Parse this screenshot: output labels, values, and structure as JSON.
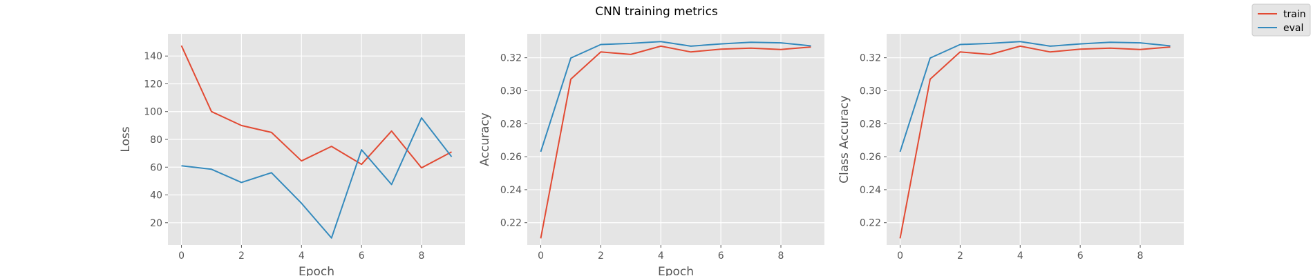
{
  "figure": {
    "suptitle": "CNN training metrics",
    "legend_position": "top-right",
    "legend": [
      {
        "label": "train",
        "color": "#E24A33"
      },
      {
        "label": "eval",
        "color": "#348ABD"
      }
    ],
    "background": "#E5E5E5"
  },
  "chart_data": [
    {
      "type": "line",
      "title": "",
      "xlabel": "Epoch",
      "ylabel": "Loss",
      "xlim": [
        -0.45,
        9.45
      ],
      "ylim": [
        4,
        156
      ],
      "xticks": [
        0,
        2,
        4,
        6,
        8
      ],
      "yticks": [
        20,
        40,
        60,
        80,
        100,
        120,
        140
      ],
      "grid": true,
      "x": [
        0,
        1,
        2,
        3,
        4,
        5,
        6,
        7,
        8,
        9
      ],
      "series": [
        {
          "name": "train",
          "color": "#E24A33",
          "values": [
            147.5,
            100,
            90,
            85,
            64.5,
            75,
            62,
            86,
            59.5,
            71
          ]
        },
        {
          "name": "eval",
          "color": "#348ABD",
          "values": [
            61,
            58.5,
            49,
            56,
            34,
            9,
            72.5,
            47.5,
            95.5,
            67.5
          ]
        }
      ]
    },
    {
      "type": "line",
      "title": "",
      "xlabel": "Epoch",
      "ylabel": "Accuracy",
      "xlim": [
        -0.45,
        9.45
      ],
      "ylim": [
        0.2065,
        0.3345
      ],
      "xticks": [
        0,
        2,
        4,
        6,
        8
      ],
      "yticks": [
        0.22,
        0.24,
        0.26,
        0.28,
        0.3,
        0.32
      ],
      "ytick_decimals": 2,
      "grid": true,
      "x": [
        0,
        1,
        2,
        3,
        4,
        5,
        6,
        7,
        8,
        9
      ],
      "series": [
        {
          "name": "train",
          "color": "#E24A33",
          "values": [
            0.2105,
            0.307,
            0.3235,
            0.322,
            0.327,
            0.3235,
            0.3252,
            0.3258,
            0.325,
            0.3265
          ]
        },
        {
          "name": "eval",
          "color": "#348ABD",
          "values": [
            0.263,
            0.3198,
            0.328,
            0.3287,
            0.3298,
            0.327,
            0.3284,
            0.3294,
            0.329,
            0.3272
          ]
        }
      ]
    },
    {
      "type": "line",
      "title": "",
      "xlabel": "",
      "ylabel": "Class Accuracy",
      "xlim": [
        -0.45,
        9.45
      ],
      "ylim": [
        0.2065,
        0.3345
      ],
      "xticks": [
        0,
        2,
        4,
        6,
        8
      ],
      "yticks": [
        0.22,
        0.24,
        0.26,
        0.28,
        0.3,
        0.32
      ],
      "ytick_decimals": 2,
      "grid": true,
      "x": [
        0,
        1,
        2,
        3,
        4,
        5,
        6,
        7,
        8,
        9
      ],
      "series": [
        {
          "name": "train",
          "color": "#E24A33",
          "values": [
            0.2105,
            0.307,
            0.3235,
            0.322,
            0.327,
            0.3235,
            0.3252,
            0.3258,
            0.325,
            0.3265
          ]
        },
        {
          "name": "eval",
          "color": "#348ABD",
          "values": [
            0.263,
            0.3198,
            0.328,
            0.3287,
            0.3298,
            0.327,
            0.3284,
            0.3294,
            0.329,
            0.3272
          ]
        }
      ]
    }
  ]
}
